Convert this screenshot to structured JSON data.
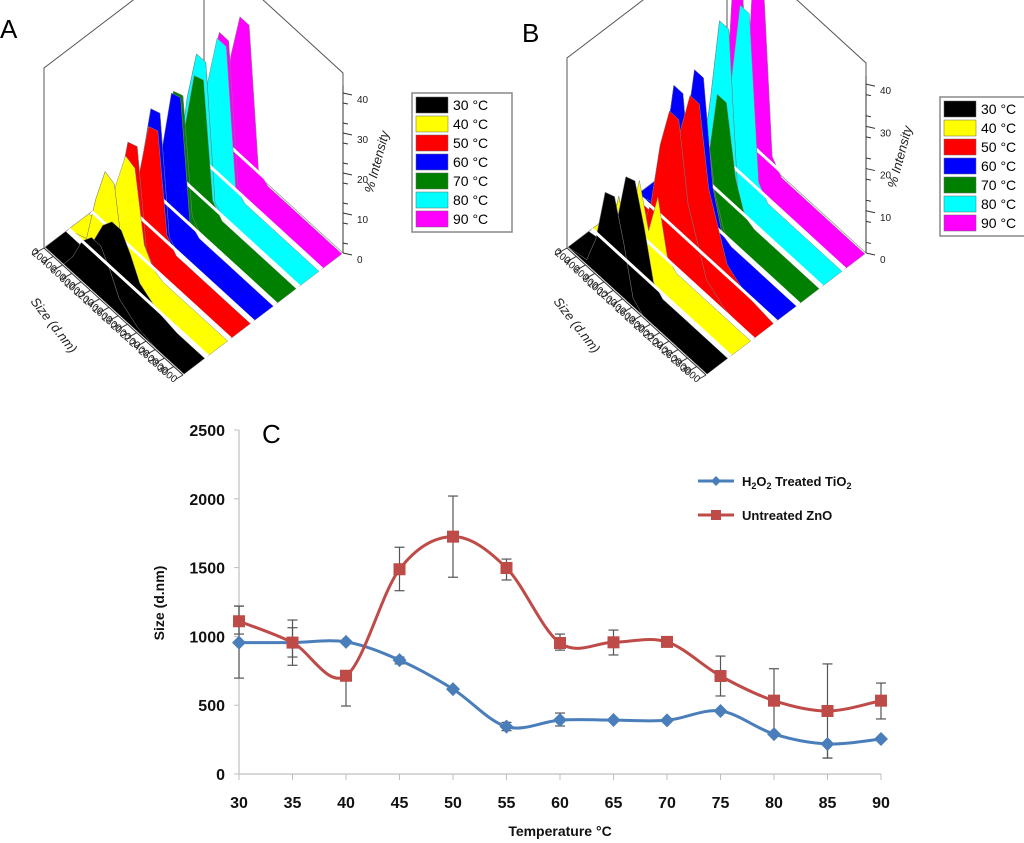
{
  "chart_data": [
    {
      "panel": "A",
      "type": "area",
      "title": "",
      "xlabel": "Size (d.nm)",
      "zlabel": "% Intensity",
      "x_ticks": [
        "0",
        "200",
        "400",
        "600",
        "800",
        "1000",
        "1200",
        "1400",
        "1600",
        "1800",
        "2000",
        "2200",
        "2400",
        "2600",
        "2800",
        "3000"
      ],
      "z_ticks": [
        "0",
        "10",
        "20",
        "30",
        "40"
      ],
      "xlim": [
        0,
        3000
      ],
      "zlim": [
        0,
        45
      ],
      "legend": [
        "30 °C",
        "40 °C",
        "50 °C",
        "60 °C",
        "70 °C",
        "80 °C",
        "90 °C"
      ],
      "colors": [
        "#000000",
        "#ffff00",
        "#ff0000",
        "#0000ff",
        "#008000",
        "#00ffff",
        "#ff00ff"
      ],
      "x": [
        0,
        400,
        600,
        800,
        1000,
        1200,
        1400,
        1600,
        2000,
        2400,
        3000
      ],
      "series": [
        {
          "name": "30 °C",
          "values": [
            0,
            0,
            4,
            10,
            13,
            13,
            9,
            4,
            1,
            0,
            0
          ]
        },
        {
          "name": "40 °C",
          "values": [
            0,
            2,
            14,
            23,
            22,
            5,
            1,
            0,
            0,
            0,
            0
          ]
        },
        {
          "name": "50 °C",
          "values": [
            0,
            1,
            12,
            26,
            27,
            3,
            0,
            0,
            0,
            0,
            0
          ]
        },
        {
          "name": "60 °C",
          "values": [
            0,
            1,
            14,
            30,
            31,
            2,
            0,
            0,
            0,
            0,
            0
          ]
        },
        {
          "name": "70 °C",
          "values": [
            0,
            1,
            15,
            30,
            31,
            3,
            0,
            0,
            0,
            0,
            0
          ]
        },
        {
          "name": "80 °C",
          "values": [
            0,
            2,
            22,
            35,
            35,
            2,
            0,
            0,
            0,
            0,
            0
          ]
        },
        {
          "name": "90 °C",
          "values": [
            0,
            2,
            24,
            36,
            36,
            2,
            0,
            0,
            0,
            0,
            0
          ]
        }
      ]
    },
    {
      "panel": "B",
      "type": "area",
      "title": "",
      "xlabel": "Size (d.nm)",
      "zlabel": "% Intensity",
      "x_ticks": [
        "0",
        "200",
        "400",
        "600",
        "800",
        "1000",
        "1200",
        "1400",
        "1600",
        "1800",
        "2000",
        "2200",
        "2400",
        "2600",
        "2800",
        "3000"
      ],
      "z_ticks": [
        "0",
        "10",
        "20",
        "30",
        "40"
      ],
      "xlim": [
        0,
        3000
      ],
      "zlim": [
        0,
        45
      ],
      "legend": [
        "30 °C",
        "40 °C",
        "50 °C",
        "60 °C",
        "70 °C",
        "80 °C",
        "90 °C"
      ],
      "colors": [
        "#000000",
        "#ffff00",
        "#ff0000",
        "#0000ff",
        "#008000",
        "#00ffff",
        "#ff00ff"
      ],
      "x": [
        0,
        400,
        600,
        800,
        1000,
        1200,
        1400,
        1600,
        2000,
        2400,
        3000
      ],
      "series": [
        {
          "name": "30 °C",
          "values": [
            0,
            1,
            8,
            21,
            22,
            13,
            2,
            0,
            0,
            0,
            0
          ]
        },
        {
          "name": "40 °C",
          "values": [
            0,
            2,
            14,
            4,
            14,
            2,
            0,
            0,
            0,
            0,
            0
          ]
        },
        {
          "name": "50 °C",
          "values": [
            0,
            0,
            2,
            10,
            26,
            36,
            36,
            18,
            4,
            1,
            0
          ]
        },
        {
          "name": "60 °C",
          "values": [
            0,
            2,
            16,
            34,
            34,
            10,
            1,
            0,
            0,
            0,
            0
          ]
        },
        {
          "name": "70 °C",
          "values": [
            0,
            1,
            6,
            24,
            24,
            8,
            1,
            0,
            0,
            0,
            0
          ]
        },
        {
          "name": "80 °C",
          "values": [
            0,
            2,
            20,
            41,
            41,
            3,
            0,
            0,
            0,
            0,
            0
          ]
        },
        {
          "name": "90 °C",
          "values": [
            0,
            3,
            45,
            45,
            3,
            0,
            0,
            0,
            0,
            0,
            0
          ]
        }
      ]
    },
    {
      "panel": "C",
      "type": "line",
      "title": "",
      "xlabel": "Temperature °C",
      "ylabel": "Size (d.nm)",
      "xlim": [
        30,
        90
      ],
      "ylim": [
        0,
        2500
      ],
      "x": [
        30,
        35,
        40,
        45,
        50,
        55,
        60,
        65,
        70,
        75,
        80,
        85,
        90
      ],
      "y_ticks": [
        0,
        500,
        1000,
        1500,
        2000,
        2500
      ],
      "grid": false,
      "legend_position": "top-right",
      "series": [
        {
          "name": "H2O2 Treated TiO2",
          "legend_parts": [
            "H",
            "2",
            "O",
            "2",
            " Treated TiO",
            "2"
          ],
          "color": "#4a7ebb",
          "marker": "diamond",
          "values": [
            955,
            955,
            960,
            828,
            617,
            344,
            392,
            392,
            390,
            458,
            290,
            218,
            254
          ],
          "err_low": [
            697,
            850,
            960,
            800,
            617,
            315,
            349,
            392,
            390,
            458,
            290,
            116,
            254
          ],
          "err_high": [
            1220,
            1063,
            960,
            850,
            617,
            375,
            443,
            392,
            390,
            458,
            290,
            218,
            254
          ]
        },
        {
          "name": "Untreated ZnO",
          "legend_parts": [
            "Untreated ZnO"
          ],
          "color": "#be4b48",
          "marker": "square",
          "values": [
            1110,
            955,
            714,
            1488,
            1725,
            1497,
            952,
            957,
            960,
            712,
            533,
            458,
            533
          ],
          "err_low": [
            1017,
            790,
            494,
            1332,
            1430,
            1410,
            900,
            865,
            960,
            567,
            290,
            116,
            400
          ],
          "err_high": [
            1221,
            1119,
            714,
            1648,
            2020,
            1562,
            1017,
            1046,
            960,
            857,
            765,
            800,
            661
          ]
        }
      ]
    }
  ],
  "labels": {
    "panel_a": "A",
    "panel_b": "B",
    "panel_c": "C",
    "size_axis": "Size (d.nm)",
    "intensity_axis": "% Intensity",
    "temp_axis": "Temperature °C",
    "size_axis_c": "Size (d.nm)"
  }
}
